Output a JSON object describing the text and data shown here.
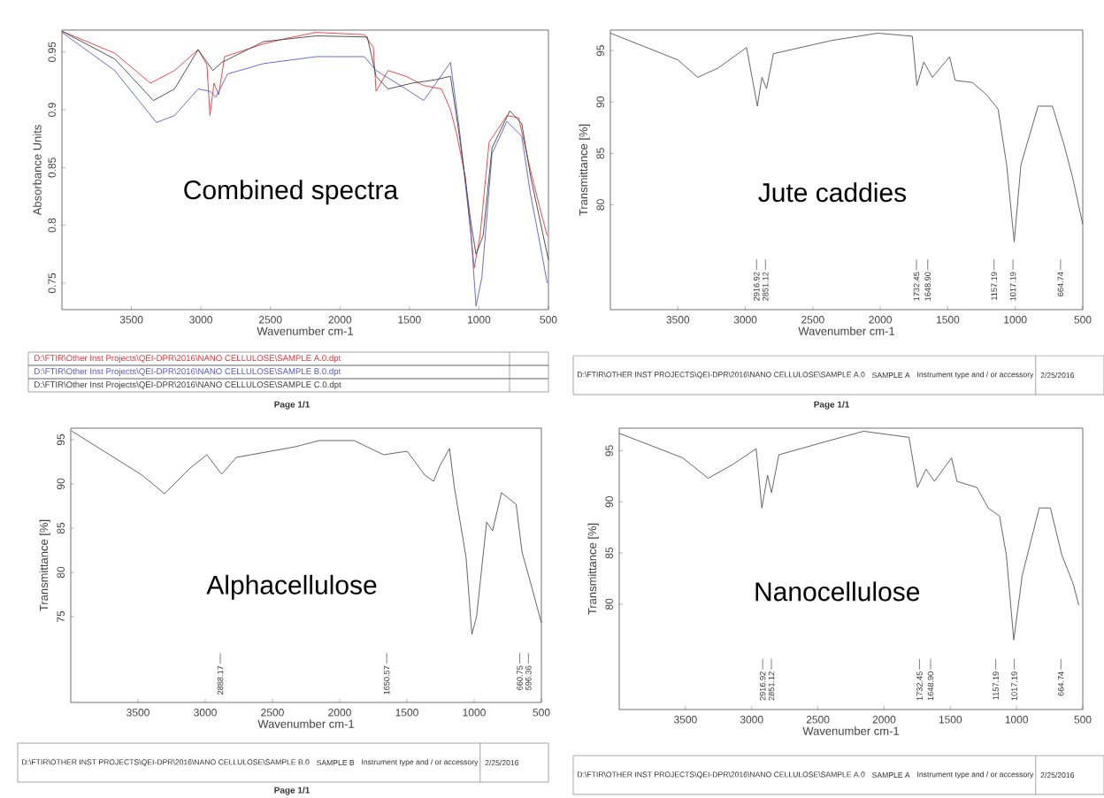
{
  "chart_data": [
    {
      "type": "line",
      "title": "Combined spectra",
      "xlabel": "Wavenumber cm-1",
      "ylabel": "Absorbance Units",
      "xlim": [
        4000,
        500
      ],
      "xticks": [
        3500,
        3000,
        2500,
        2000,
        1500,
        1000,
        500
      ],
      "ylim": [
        0.727,
        0.969
      ],
      "yticks": [
        0.75,
        0.8,
        0.85,
        0.9,
        0.95
      ],
      "series": [
        {
          "name": "D:\\FTIR\\Other Inst Projects\\QEI-DPR\\2016\\NANO CELLULOSE\\SAMPLE A.0.dpt",
          "color": "#e8383d",
          "x": [
            4000,
            3620,
            3363,
            3190,
            3020,
            2957,
            2935,
            2906,
            2872,
            2830,
            2550,
            2380,
            2170,
            1825,
            1760,
            1740,
            1654,
            1525,
            1397,
            1269,
            1205,
            1162,
            1098,
            1034,
            992,
            927,
            799,
            714,
            628,
            564,
            509
          ],
          "values": [
            0.968,
            0.949,
            0.923,
            0.934,
            0.952,
            0.939,
            0.895,
            0.923,
            0.913,
            0.946,
            0.957,
            0.962,
            0.967,
            0.965,
            0.954,
            0.916,
            0.934,
            0.929,
            0.921,
            0.918,
            0.9,
            0.88,
            0.842,
            0.763,
            0.791,
            0.872,
            0.895,
            0.893,
            0.847,
            0.816,
            0.791
          ]
        },
        {
          "name": "D:\\FTIR\\Other Inst Projects\\QEI-DPR\\2016\\NANO CELLULOSE\\SAMPLE B.0.dpt",
          "color": "#5a5ac8",
          "x": [
            4000,
            3620,
            3320,
            3190,
            3020,
            2935,
            2893,
            2808,
            2550,
            2170,
            1825,
            1740,
            1525,
            1397,
            1205,
            1141,
            1056,
            1021,
            979,
            906,
            799,
            692,
            628,
            564,
            509
          ],
          "values": [
            0.967,
            0.934,
            0.889,
            0.895,
            0.918,
            0.916,
            0.911,
            0.931,
            0.94,
            0.946,
            0.946,
            0.934,
            0.918,
            0.908,
            0.941,
            0.883,
            0.791,
            0.73,
            0.755,
            0.862,
            0.89,
            0.877,
            0.826,
            0.786,
            0.75
          ]
        },
        {
          "name": "D:\\FTIR\\Other Inst Projects\\QEI-DPR\\2016\\NANO CELLULOSE\\SAMPLE C.0.dpt",
          "color": "#404040",
          "x": [
            4000,
            3620,
            3342,
            3190,
            3020,
            2914,
            2850,
            2550,
            2170,
            1803,
            1740,
            1654,
            1483,
            1312,
            1205,
            1141,
            1056,
            1021,
            970,
            906,
            778,
            692,
            628,
            500
          ],
          "values": [
            0.968,
            0.944,
            0.908,
            0.918,
            0.952,
            0.934,
            0.941,
            0.959,
            0.964,
            0.963,
            0.929,
            0.918,
            0.923,
            0.926,
            0.929,
            0.878,
            0.801,
            0.775,
            0.791,
            0.867,
            0.899,
            0.888,
            0.842,
            0.77
          ]
        }
      ],
      "annotations": [
        "Page 1/1"
      ]
    },
    {
      "type": "line",
      "title": "Jute caddies",
      "xlabel": "Wavenumber cm-1",
      "ylabel": "Transmittance [%]",
      "xlim": [
        4000,
        500
      ],
      "xticks": [
        3500,
        3000,
        2500,
        2000,
        1500,
        1000,
        500
      ],
      "ylim": [
        69.8,
        97
      ],
      "yticks": [
        80,
        85,
        90,
        95
      ],
      "series": [
        {
          "color": "#555555",
          "x": [
            4000,
            3500,
            3352,
            3203,
            2991,
            2911,
            2877,
            2843,
            2792,
            2356,
            2017,
            1763,
            1729,
            1678,
            1614,
            1487,
            1445,
            1318,
            1212,
            1127,
            1064,
            1008,
            958,
            831,
            725,
            640,
            576,
            500
          ],
          "values": [
            96.7,
            94.1,
            92.4,
            93.3,
            95.3,
            89.6,
            92.4,
            91.3,
            94.7,
            96.0,
            96.7,
            96.4,
            91.6,
            93.9,
            92.4,
            94.4,
            92.1,
            91.9,
            90.7,
            89.3,
            83.9,
            76.4,
            83.9,
            89.6,
            89.6,
            85.9,
            82.7,
            78.1
          ]
        }
      ],
      "annotations": [
        "D:\\FTIR\\OTHER INST PROJECTS\\QEI-DPR\\2016\\NANO CELLULOSE\\SAMPLE A.0",
        "SAMPLE A",
        "Instrument type and / or accessory",
        "2/25/2016",
        "Page 1/1"
      ],
      "ref_lines": [
        {
          "axis": "x",
          "value": 2916.92,
          "label": "2916.92"
        },
        {
          "axis": "x",
          "value": 2851.12,
          "label": "2851.12"
        },
        {
          "axis": "x",
          "value": 1732.45,
          "label": "1732.45"
        },
        {
          "axis": "x",
          "value": 1648.9,
          "label": "1648.90"
        },
        {
          "axis": "x",
          "value": 1157.19,
          "label": "1157.19"
        },
        {
          "axis": "x",
          "value": 1017.19,
          "label": "1017.19"
        },
        {
          "axis": "x",
          "value": 664.74,
          "label": "664.74"
        }
      ]
    },
    {
      "type": "line",
      "title": "Alphacellulose",
      "xlabel": "Wavenumber cm-1",
      "ylabel": "Transmittance [%]",
      "xlim": [
        4000,
        500
      ],
      "xticks": [
        3500,
        3000,
        2500,
        2000,
        1500,
        1000,
        500
      ],
      "ylim": [
        65.3,
        96.3
      ],
      "yticks": [
        75,
        80,
        85,
        90,
        95
      ],
      "series": [
        {
          "color": "#555555",
          "x": [
            3995,
            3470,
            3303,
            3119,
            2988,
            2878,
            2769,
            2330,
            2155,
            1893,
            1674,
            1498,
            1367,
            1301,
            1257,
            1183,
            1148,
            1060,
            1017,
            982,
            907,
            863,
            797,
            688,
            644,
            578,
            500
          ],
          "values": [
            96.0,
            91.0,
            88.9,
            91.7,
            93.3,
            91.1,
            93.0,
            94.2,
            94.9,
            94.9,
            93.3,
            93.7,
            91.0,
            90.3,
            92.0,
            94.0,
            89.7,
            81.7,
            73.0,
            75.0,
            85.7,
            84.7,
            89.0,
            87.7,
            82.3,
            78.7,
            74.3
          ]
        }
      ],
      "annotations": [
        "D:\\FTIR\\OTHER INST PROJECTS\\QEI-DPR\\2016\\NANO CELLULOSE\\SAMPLE B.0",
        "SAMPLE B",
        "Instrument type and / or accessory",
        "2/25/2016",
        "Page 1/1"
      ],
      "ref_lines": [
        {
          "axis": "x",
          "value": 2888.17,
          "label": "2888.17"
        },
        {
          "axis": "x",
          "value": 1650.57,
          "label": "1650.57"
        },
        {
          "axis": "x",
          "value": 660.75,
          "label": "660.75"
        },
        {
          "axis": "x",
          "value": 596.36,
          "label": "596.36"
        }
      ]
    },
    {
      "type": "line",
      "title": "Nanocellulose",
      "xlabel": "Wavenumber cm-1",
      "ylabel": "Transmittance [%]",
      "xlim": [
        4000,
        500
      ],
      "xticks": [
        3500,
        3000,
        2500,
        2000,
        1500,
        1000,
        500
      ],
      "ylim": [
        69.7,
        97.2
      ],
      "yticks": [
        80,
        85,
        90,
        95
      ],
      "series": [
        {
          "color": "#555555",
          "x": [
            4000,
            3521,
            3329,
            3137,
            2966,
            2923,
            2880,
            2850,
            2795,
            2410,
            2154,
            1812,
            1748,
            1684,
            1620,
            1491,
            1449,
            1299,
            1214,
            1128,
            1077,
            1021,
            957,
            829,
            744,
            658,
            573,
            530
          ],
          "values": [
            96.7,
            94.3,
            92.3,
            93.7,
            95.2,
            89.4,
            92.6,
            90.9,
            94.6,
            96.0,
            96.9,
            96.3,
            91.4,
            93.2,
            92.0,
            94.3,
            92.0,
            91.4,
            89.4,
            88.6,
            84.8,
            76.5,
            82.8,
            89.4,
            89.4,
            84.8,
            82.0,
            79.9
          ]
        }
      ],
      "annotations": [
        "D:\\FTIR\\OTHER INST PROJECTS\\QEI-DPR\\2016\\NANO CELLULOSE\\SAMPLE A.0",
        "SAMPLE A",
        "Instrument type and / or accessory",
        "2/25/2016"
      ],
      "ref_lines": [
        {
          "axis": "x",
          "value": 2916.92,
          "label": "2916.92"
        },
        {
          "axis": "x",
          "value": 2851.12,
          "label": "2851.12"
        },
        {
          "axis": "x",
          "value": 1732.45,
          "label": "1732.45"
        },
        {
          "axis": "x",
          "value": 1648.9,
          "label": "1648.90"
        },
        {
          "axis": "x",
          "value": 1157.19,
          "label": "1157.19"
        },
        {
          "axis": "x",
          "value": 1017.19,
          "label": "1017.19"
        },
        {
          "axis": "x",
          "value": 664.74,
          "label": "664.74"
        }
      ]
    }
  ]
}
